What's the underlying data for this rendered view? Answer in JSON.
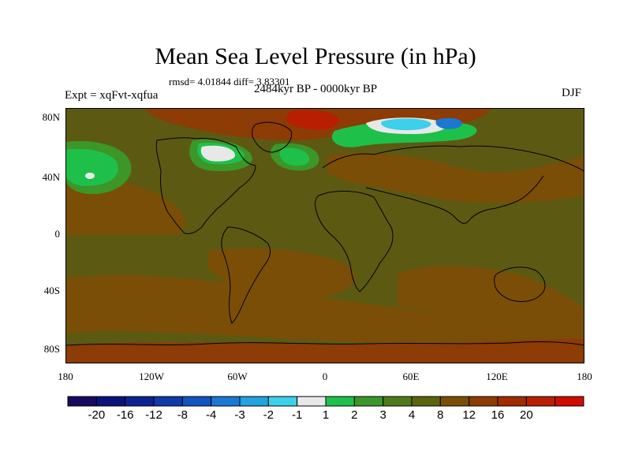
{
  "title": "Mean Sea Level Pressure (in hPa)",
  "stats": "rmsd= 4.01844 diff= 3.83301",
  "period": "2484kyr BP - 0000kyr BP",
  "experiment": "Expt = xqFvt-xqfua",
  "season": "DJF",
  "lat_labels": [
    "80N",
    "40N",
    "0",
    "40S",
    "80S"
  ],
  "lon_labels": [
    "180",
    "120W",
    "60W",
    "0",
    "60E",
    "120E",
    "180"
  ],
  "colorbar": {
    "colors": [
      "#1a0a5e",
      "#0b127a",
      "#0d2490",
      "#0f3aa8",
      "#1255c0",
      "#1a78d2",
      "#22a2de",
      "#3cd0ea",
      "#e8e8e8",
      "#1ec04a",
      "#3c9628",
      "#4e7a1c",
      "#5c6410",
      "#7a4e06",
      "#8c3c04",
      "#a02c02",
      "#b81e02",
      "#d00c00"
    ],
    "labels": [
      "-20",
      "-16",
      "-12",
      "-8",
      "-4",
      "-3",
      "-2",
      "-1",
      "1",
      "2",
      "3",
      "4",
      "8",
      "12",
      "16",
      "20"
    ]
  },
  "field_colors": {
    "base": "#5c5a12",
    "high": "#7a4e06",
    "higher": "#8c3c04",
    "peak": "#b81e02",
    "low_green": "#1ec04a",
    "mid_green": "#3c9628",
    "neutral": "#e8e8e8",
    "blue": "#1a78d2",
    "cyan": "#3cd0ea"
  }
}
